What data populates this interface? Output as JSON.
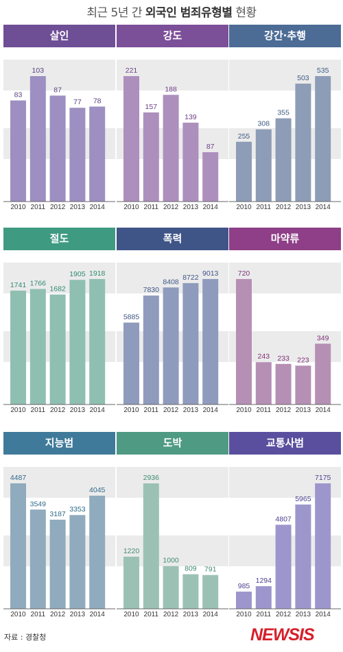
{
  "title": {
    "normal": "최근 5년 간 ",
    "bold": "외국인 범죄유형별",
    "tail": " 현황"
  },
  "source": "자료 : 경찰청",
  "logo": "NEWSIS",
  "chart_data": [
    {
      "type": "bar",
      "title": "살인",
      "categories": [
        "2010",
        "2011",
        "2012",
        "2013",
        "2014"
      ],
      "values": [
        83,
        103,
        87,
        77,
        78
      ],
      "header_color": "#6e4f96",
      "bar_color": "#9d8fc1",
      "label_color": "#5a3f82"
    },
    {
      "type": "bar",
      "title": "강도",
      "categories": [
        "2010",
        "2011",
        "2012",
        "2013",
        "2014"
      ],
      "values": [
        221,
        157,
        188,
        139,
        87
      ],
      "header_color": "#7c4f99",
      "bar_color": "#ad8fbd",
      "label_color": "#6a3f87"
    },
    {
      "type": "bar",
      "title": "강간·추행",
      "categories": [
        "2010",
        "2011",
        "2012",
        "2013",
        "2014"
      ],
      "values": [
        255,
        308,
        355,
        503,
        535
      ],
      "header_color": "#4c6c96",
      "bar_color": "#8d9cb7",
      "label_color": "#3c5a82"
    },
    {
      "type": "bar",
      "title": "절도",
      "categories": [
        "2010",
        "2011",
        "2012",
        "2013",
        "2014"
      ],
      "values": [
        1741,
        1766,
        1682,
        1905,
        1918
      ],
      "header_color": "#3f9a82",
      "bar_color": "#8fbfb0",
      "label_color": "#2f8a72"
    },
    {
      "type": "bar",
      "title": "폭력",
      "categories": [
        "2010",
        "2011",
        "2012",
        "2013",
        "2014"
      ],
      "values": [
        5885,
        7830,
        8408,
        8722,
        9013
      ],
      "header_color": "#3f5487",
      "bar_color": "#8f9bbd",
      "label_color": "#3f5487"
    },
    {
      "type": "bar",
      "title": "마약류",
      "categories": [
        "2010",
        "2011",
        "2012",
        "2013",
        "2014"
      ],
      "values": [
        720,
        243,
        233,
        223,
        349
      ],
      "header_color": "#8e3f87",
      "bar_color": "#b68fb5",
      "label_color": "#7e2f77"
    },
    {
      "type": "bar",
      "title": "지능범",
      "categories": [
        "2010",
        "2011",
        "2012",
        "2013",
        "2014"
      ],
      "values": [
        4487,
        3549,
        3187,
        3353,
        4045
      ],
      "header_color": "#3f7a9a",
      "bar_color": "#8fabbd",
      "label_color": "#2f6a8a"
    },
    {
      "type": "bar",
      "title": "도박",
      "categories": [
        "2010",
        "2011",
        "2012",
        "2013",
        "2014"
      ],
      "values": [
        1220,
        2936,
        1000,
        809,
        791
      ],
      "header_color": "#4f9a82",
      "bar_color": "#9bc1b5",
      "label_color": "#3f8a72"
    },
    {
      "type": "bar",
      "title": "교통사범",
      "categories": [
        "2010",
        "2011",
        "2012",
        "2013",
        "2014"
      ],
      "values": [
        985,
        1294,
        4807,
        5965,
        7175
      ],
      "header_color": "#5a4f9e",
      "bar_color": "#9d96cd",
      "label_color": "#4a3f8e"
    }
  ]
}
